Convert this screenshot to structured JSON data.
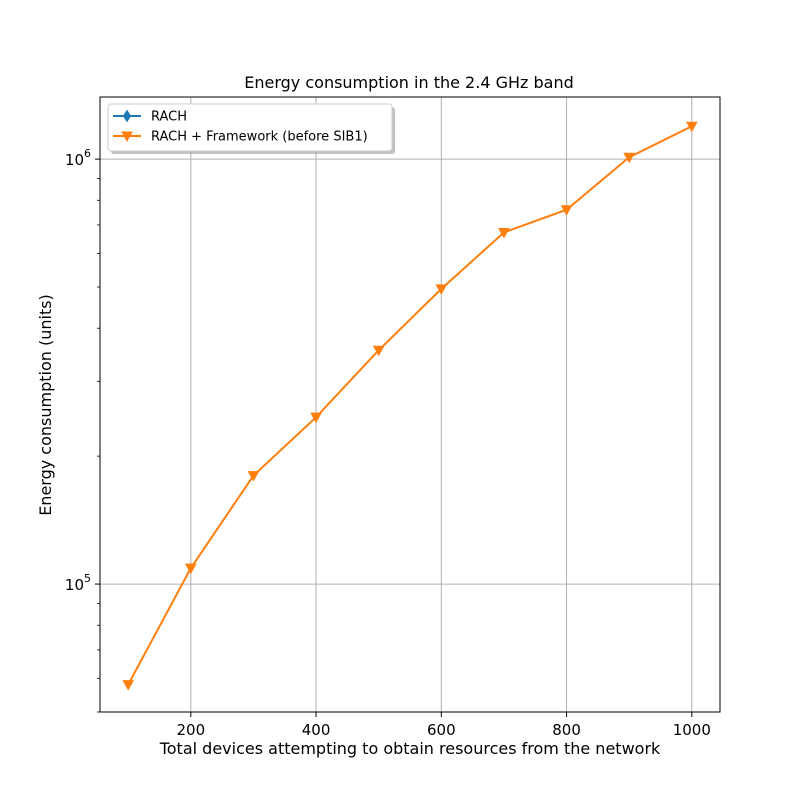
{
  "chart_data": {
    "type": "line",
    "title": "Energy consumption in the 2.4 GHz band",
    "xlabel": "Total devices attempting to obtain resources from the network",
    "ylabel": "Energy consumption (units)",
    "x_ticks": [
      200,
      400,
      600,
      800,
      1000
    ],
    "y_ticks": [
      {
        "base": "10",
        "exp": "5",
        "value": 100000
      },
      {
        "base": "10",
        "exp": "6",
        "value": 1000000
      }
    ],
    "xlim": [
      55,
      1045
    ],
    "ylim": [
      50000,
      1400000
    ],
    "yscale": "log",
    "grid": true,
    "legend_position": "upper-left",
    "series": [
      {
        "name": "RACH",
        "color": "#1f77b4",
        "marker": "diamond",
        "x": [],
        "y": []
      },
      {
        "name": "RACH + Framework (before SIB1)",
        "color": "#ff7f0e",
        "marker": "triangle-down",
        "x": [
          100,
          200,
          300,
          400,
          500,
          600,
          700,
          800,
          900,
          1000
        ],
        "y": [
          58000,
          109000,
          180000,
          247000,
          355000,
          495000,
          672000,
          760000,
          1010000,
          1195000
        ]
      }
    ]
  }
}
